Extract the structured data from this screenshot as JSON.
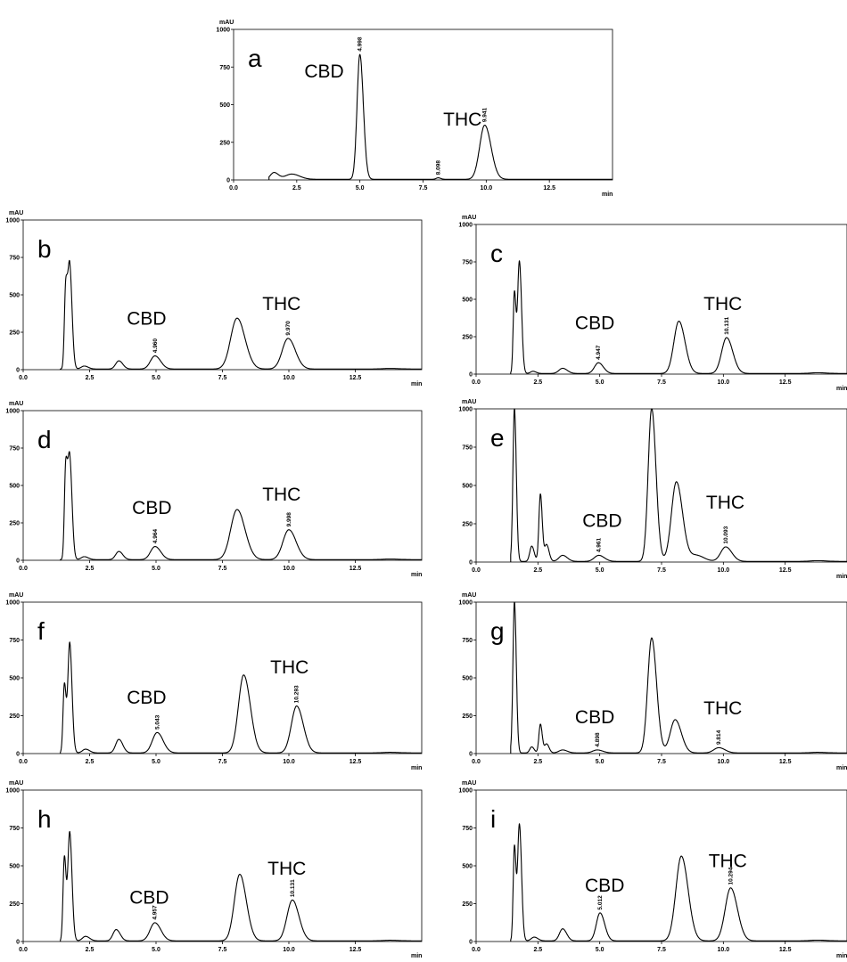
{
  "figure": {
    "x_unit": "min",
    "y_unit": "mAU",
    "compound_labels": {
      "cbd": "CBD",
      "thc": "THC"
    }
  },
  "chart_data": [
    {
      "panel": "a",
      "type": "line",
      "xlim": [
        0,
        15
      ],
      "ylim": [
        0,
        1000
      ],
      "xticks": [
        "0.0",
        "2.5",
        "5.0",
        "7.5",
        "10.0",
        "12.5"
      ],
      "yticks": [
        "0",
        "250",
        "500",
        "750",
        "1000"
      ],
      "peaks": [
        {
          "rt": 1.6,
          "height": 45,
          "width": 0.14
        },
        {
          "rt": 2.3,
          "height": 35,
          "width": 0.25
        },
        {
          "rt": 4.998,
          "height": 830,
          "width": 0.11,
          "label": "4.998"
        },
        {
          "rt": 8.098,
          "height": 10,
          "width": 0.08,
          "label": "8.098"
        },
        {
          "rt": 9.941,
          "height": 360,
          "width": 0.2,
          "label": "9.941"
        }
      ],
      "labels": {
        "cbd": {
          "x": 2.8,
          "y": 680
        },
        "thc": {
          "x": 8.3,
          "y": 360
        }
      }
    },
    {
      "panel": "b",
      "type": "line",
      "xlim": [
        0,
        15
      ],
      "ylim": [
        0,
        1000
      ],
      "xticks": [
        "0.0",
        "2.5",
        "5.0",
        "7.5",
        "10.0",
        "12.5"
      ],
      "yticks": [
        "0",
        "250",
        "500",
        "750",
        "1000"
      ],
      "peaks": [
        {
          "rt": 1.6,
          "height": 530,
          "width": 0.05
        },
        {
          "rt": 1.75,
          "height": 690,
          "width": 0.07
        },
        {
          "rt": 2.3,
          "height": 20,
          "width": 0.12
        },
        {
          "rt": 3.6,
          "height": 55,
          "width": 0.12
        },
        {
          "rt": 4.96,
          "height": 88,
          "width": 0.17,
          "label": "4.960"
        },
        {
          "rt": 8.05,
          "height": 340,
          "width": 0.24
        },
        {
          "rt": 9.97,
          "height": 205,
          "width": 0.22,
          "label": "9.970"
        },
        {
          "rt": 13.8,
          "height": 4,
          "width": 0.3
        }
      ],
      "labels": {
        "cbd": {
          "x": 3.9,
          "y": 300
        },
        "thc": {
          "x": 9.0,
          "y": 400
        }
      }
    },
    {
      "panel": "c",
      "type": "line",
      "xlim": [
        0,
        15
      ],
      "ylim": [
        0,
        1000
      ],
      "xticks": [
        "0.0",
        "2.5",
        "5.0",
        "7.5",
        "10.0",
        "12.5"
      ],
      "yticks": [
        "0",
        "250",
        "500",
        "750",
        "1000"
      ],
      "peaks": [
        {
          "rt": 1.55,
          "height": 540,
          "width": 0.05
        },
        {
          "rt": 1.75,
          "height": 750,
          "width": 0.07
        },
        {
          "rt": 2.3,
          "height": 15,
          "width": 0.1
        },
        {
          "rt": 3.5,
          "height": 35,
          "width": 0.15
        },
        {
          "rt": 4.947,
          "height": 72,
          "width": 0.16,
          "label": "4.947"
        },
        {
          "rt": 8.2,
          "height": 350,
          "width": 0.2
        },
        {
          "rt": 10.131,
          "height": 240,
          "width": 0.2,
          "label": "10.131"
        },
        {
          "rt": 13.8,
          "height": 5,
          "width": 0.3
        }
      ],
      "labels": {
        "cbd": {
          "x": 4.0,
          "y": 300
        },
        "thc": {
          "x": 9.2,
          "y": 430
        }
      }
    },
    {
      "panel": "d",
      "type": "line",
      "xlim": [
        0,
        15
      ],
      "ylim": [
        0,
        1000
      ],
      "xticks": [
        "0.0",
        "2.5",
        "5.0",
        "7.5",
        "10.0",
        "12.5"
      ],
      "yticks": [
        "0",
        "250",
        "500",
        "750",
        "1000"
      ],
      "peaks": [
        {
          "rt": 1.6,
          "height": 600,
          "width": 0.05
        },
        {
          "rt": 1.75,
          "height": 680,
          "width": 0.07
        },
        {
          "rt": 2.3,
          "height": 20,
          "width": 0.12
        },
        {
          "rt": 3.6,
          "height": 55,
          "width": 0.12
        },
        {
          "rt": 4.964,
          "height": 88,
          "width": 0.17,
          "label": "4.964"
        },
        {
          "rt": 8.05,
          "height": 335,
          "width": 0.24
        },
        {
          "rt": 9.998,
          "height": 200,
          "width": 0.22,
          "label": "9.998"
        },
        {
          "rt": 13.8,
          "height": 4,
          "width": 0.3
        }
      ],
      "labels": {
        "cbd": {
          "x": 4.1,
          "y": 310
        },
        "thc": {
          "x": 9.0,
          "y": 400
        }
      }
    },
    {
      "panel": "e",
      "type": "line",
      "xlim": [
        0,
        15
      ],
      "ylim": [
        0,
        1000
      ],
      "xticks": [
        "0.0",
        "2.5",
        "5.0",
        "7.5",
        "10.0",
        "12.5"
      ],
      "yticks": [
        "0",
        "250",
        "500",
        "750",
        "1000"
      ],
      "peaks": [
        {
          "rt": 1.55,
          "height": 1000,
          "width": 0.06,
          "clipped": true
        },
        {
          "rt": 2.25,
          "height": 100,
          "width": 0.08
        },
        {
          "rt": 2.6,
          "height": 440,
          "width": 0.06
        },
        {
          "rt": 2.85,
          "height": 110,
          "width": 0.08
        },
        {
          "rt": 3.5,
          "height": 40,
          "width": 0.15
        },
        {
          "rt": 4.961,
          "height": 40,
          "width": 0.18,
          "label": "4.961"
        },
        {
          "rt": 7.1,
          "height": 1000,
          "width": 0.14,
          "clipped": true
        },
        {
          "rt": 8.1,
          "height": 520,
          "width": 0.2
        },
        {
          "rt": 8.9,
          "height": 40,
          "width": 0.25
        },
        {
          "rt": 10.093,
          "height": 95,
          "width": 0.2,
          "label": "10.093"
        },
        {
          "rt": 13.8,
          "height": 5,
          "width": 0.3
        }
      ],
      "labels": {
        "cbd": {
          "x": 4.3,
          "y": 230
        },
        "thc": {
          "x": 9.3,
          "y": 350
        }
      }
    },
    {
      "panel": "f",
      "type": "line",
      "xlim": [
        0,
        15
      ],
      "ylim": [
        0,
        1000
      ],
      "xticks": [
        "0.0",
        "2.5",
        "5.0",
        "7.5",
        "10.0",
        "12.5"
      ],
      "yticks": [
        "0",
        "250",
        "500",
        "750",
        "1000"
      ],
      "peaks": [
        {
          "rt": 1.55,
          "height": 450,
          "width": 0.05
        },
        {
          "rt": 1.75,
          "height": 730,
          "width": 0.07
        },
        {
          "rt": 2.35,
          "height": 25,
          "width": 0.12
        },
        {
          "rt": 3.6,
          "height": 90,
          "width": 0.12
        },
        {
          "rt": 5.043,
          "height": 135,
          "width": 0.18,
          "label": "5.043"
        },
        {
          "rt": 8.3,
          "height": 515,
          "width": 0.2
        },
        {
          "rt": 10.293,
          "height": 310,
          "width": 0.2,
          "label": "10.293"
        },
        {
          "rt": 13.8,
          "height": 4,
          "width": 0.3
        }
      ],
      "labels": {
        "cbd": {
          "x": 3.9,
          "y": 330
        },
        "thc": {
          "x": 9.3,
          "y": 530
        }
      }
    },
    {
      "panel": "g",
      "type": "line",
      "xlim": [
        0,
        15
      ],
      "ylim": [
        0,
        1000
      ],
      "xticks": [
        "0.0",
        "2.5",
        "5.0",
        "7.5",
        "10.0",
        "12.5"
      ],
      "yticks": [
        "0",
        "250",
        "500",
        "750",
        "1000"
      ],
      "peaks": [
        {
          "rt": 1.55,
          "height": 1000,
          "width": 0.06,
          "clipped": true
        },
        {
          "rt": 2.25,
          "height": 40,
          "width": 0.08
        },
        {
          "rt": 2.6,
          "height": 190,
          "width": 0.06
        },
        {
          "rt": 2.85,
          "height": 60,
          "width": 0.08
        },
        {
          "rt": 3.5,
          "height": 20,
          "width": 0.15
        },
        {
          "rt": 4.898,
          "height": 20,
          "width": 0.18,
          "label": "4.898"
        },
        {
          "rt": 7.1,
          "height": 760,
          "width": 0.16
        },
        {
          "rt": 8.05,
          "height": 220,
          "width": 0.2
        },
        {
          "rt": 9.814,
          "height": 35,
          "width": 0.2,
          "label": "9.814"
        },
        {
          "rt": 13.8,
          "height": 4,
          "width": 0.3
        }
      ],
      "labels": {
        "cbd": {
          "x": 4.0,
          "y": 200
        },
        "thc": {
          "x": 9.2,
          "y": 260
        }
      }
    },
    {
      "panel": "h",
      "type": "line",
      "xlim": [
        0,
        15
      ],
      "ylim": [
        0,
        1000
      ],
      "xticks": [
        "0.0",
        "2.5",
        "5.0",
        "7.5",
        "10.0",
        "12.5"
      ],
      "yticks": [
        "0",
        "250",
        "500",
        "750",
        "1000"
      ],
      "peaks": [
        {
          "rt": 1.55,
          "height": 550,
          "width": 0.05
        },
        {
          "rt": 1.75,
          "height": 720,
          "width": 0.07
        },
        {
          "rt": 2.35,
          "height": 30,
          "width": 0.12
        },
        {
          "rt": 3.5,
          "height": 75,
          "width": 0.12
        },
        {
          "rt": 4.957,
          "height": 120,
          "width": 0.18,
          "label": "4.957"
        },
        {
          "rt": 8.15,
          "height": 440,
          "width": 0.2
        },
        {
          "rt": 10.131,
          "height": 270,
          "width": 0.2,
          "label": "10.131"
        },
        {
          "rt": 13.8,
          "height": 4,
          "width": 0.3
        }
      ],
      "labels": {
        "cbd": {
          "x": 4.0,
          "y": 250
        },
        "thc": {
          "x": 9.2,
          "y": 440
        }
      }
    },
    {
      "panel": "i",
      "type": "line",
      "xlim": [
        0,
        15
      ],
      "ylim": [
        0,
        1000
      ],
      "xticks": [
        "0.0",
        "2.5",
        "5.0",
        "7.5",
        "10.0",
        "12.5"
      ],
      "yticks": [
        "0",
        "250",
        "500",
        "750",
        "1000"
      ],
      "peaks": [
        {
          "rt": 1.55,
          "height": 620,
          "width": 0.05
        },
        {
          "rt": 1.75,
          "height": 770,
          "width": 0.07
        },
        {
          "rt": 2.35,
          "height": 25,
          "width": 0.12
        },
        {
          "rt": 3.5,
          "height": 80,
          "width": 0.13
        },
        {
          "rt": 5.012,
          "height": 185,
          "width": 0.15,
          "label": "5.012"
        },
        {
          "rt": 8.3,
          "height": 560,
          "width": 0.22
        },
        {
          "rt": 10.294,
          "height": 350,
          "width": 0.22,
          "label": "10.294"
        },
        {
          "rt": 13.8,
          "height": 5,
          "width": 0.3
        }
      ],
      "labels": {
        "cbd": {
          "x": 4.4,
          "y": 330
        },
        "thc": {
          "x": 9.4,
          "y": 490
        }
      }
    }
  ]
}
